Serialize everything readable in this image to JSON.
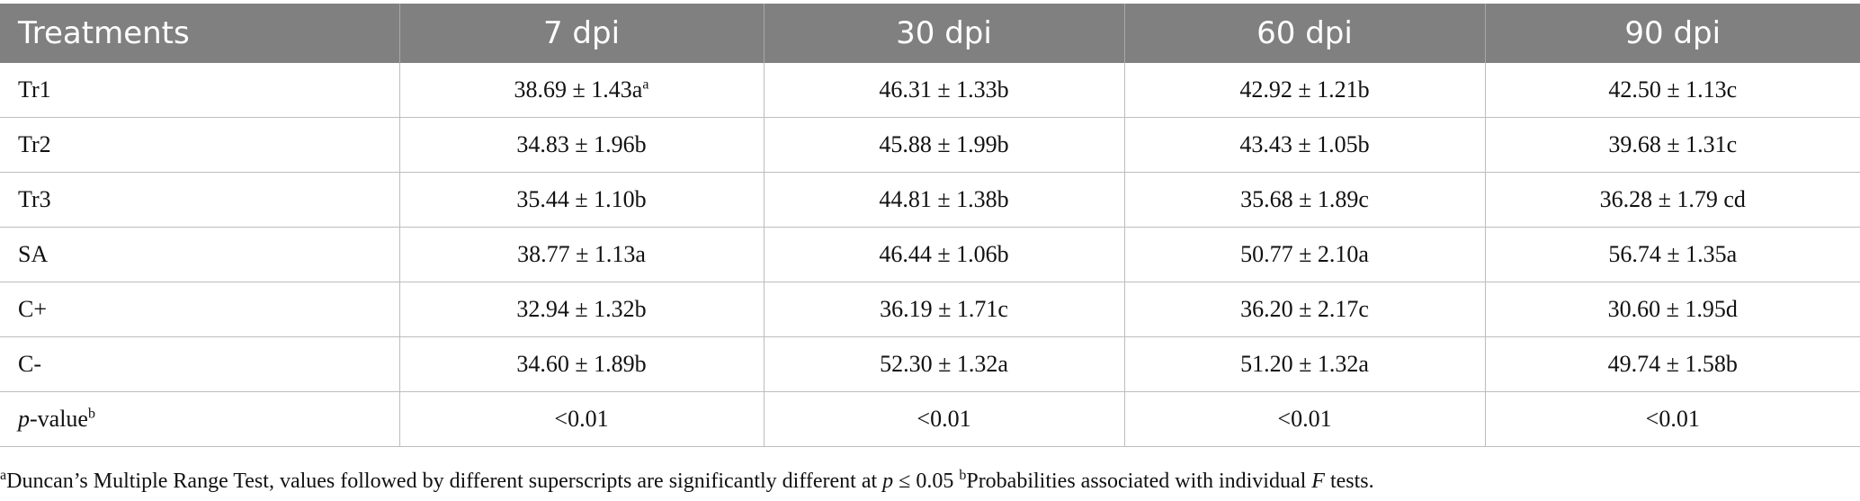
{
  "table": {
    "headers": [
      "Treatments",
      "7 dpi",
      "30 dpi",
      "60 dpi",
      "90 dpi"
    ],
    "rows": [
      {
        "treatment": "Tr1",
        "cells": [
          "38.69 ± 1.43a",
          "46.31 ± 1.33b",
          "42.92 ± 1.21b",
          "42.50 ± 1.13c"
        ],
        "first_cell_sup": "a"
      },
      {
        "treatment": "Tr2",
        "cells": [
          "34.83 ± 1.96b",
          "45.88 ± 1.99b",
          "43.43 ± 1.05b",
          "39.68 ± 1.31c"
        ]
      },
      {
        "treatment": "Tr3",
        "cells": [
          "35.44 ± 1.10b",
          "44.81 ± 1.38b",
          "35.68 ± 1.89c",
          "36.28 ± 1.79 cd"
        ]
      },
      {
        "treatment": "SA",
        "cells": [
          "38.77 ± 1.13a",
          "46.44 ± 1.06b",
          "50.77 ± 2.10a",
          "56.74 ± 1.35a"
        ]
      },
      {
        "treatment": "C+",
        "cells": [
          "32.94 ± 1.32b",
          "36.19 ± 1.71c",
          "36.20 ± 2.17c",
          "30.60 ± 1.95d"
        ]
      },
      {
        "treatment": "C-",
        "cells": [
          "34.60 ± 1.89b",
          "52.30 ± 1.32a",
          "51.20 ± 1.32a",
          "49.74 ± 1.58b"
        ]
      }
    ],
    "pvalue_row": {
      "label_italic": "p",
      "label_rest": "-value",
      "label_sup": "b",
      "cells": [
        "<0.01",
        "<0.01",
        "<0.01",
        "<0.01"
      ]
    }
  },
  "footnote": {
    "sup_a": "a",
    "text_a": "Duncan’s Multiple Range Test, values followed by different superscripts are significantly different at ",
    "p_italic": "p",
    "text_p": " ≤ 0.05 ",
    "sup_b": "b",
    "text_b": "Probabilities associated with individual ",
    "f_italic": "F",
    "text_end": " tests."
  },
  "colors": {
    "header_bg": "#808080",
    "header_text": "#ffffff",
    "grid_line": "#bdbdbd"
  }
}
